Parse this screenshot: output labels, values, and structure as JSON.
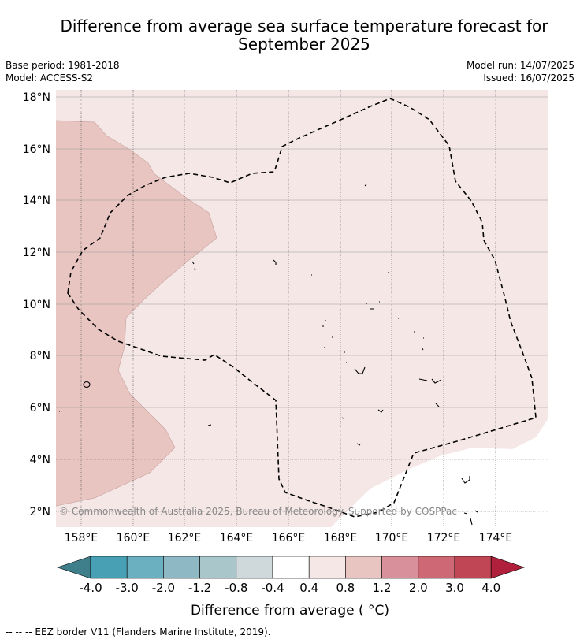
{
  "header": {
    "title_line1": "Difference from average sea surface temperature forecast for",
    "title_line2": "September 2025",
    "base_period": "Base period: 1981-2018",
    "model": "Model: ACCESS-S2",
    "model_run": "Model run: 14/07/2025",
    "issued": "Issued: 16/07/2025"
  },
  "map": {
    "lat_labels": [
      "18°N",
      "16°N",
      "14°N",
      "12°N",
      "10°N",
      "8°N",
      "6°N",
      "4°N",
      "2°N"
    ],
    "lon_labels": [
      "158°E",
      "160°E",
      "162°E",
      "164°E",
      "166°E",
      "168°E",
      "170°E",
      "172°E",
      "174°E"
    ],
    "copyright": "© Commonwealth of Australia 2025, Bureau of Meteorology. Supported by COSPPac"
  },
  "colorbar": {
    "labels": [
      "-4.0",
      "-3.0",
      "-2.0",
      "-1.2",
      "-0.8",
      "-0.4",
      "0.4",
      "0.8",
      "1.2",
      "2.0",
      "3.0",
      "4.0"
    ],
    "colors": [
      "#3f7f8c",
      "#47a0b4",
      "#6ab0c0",
      "#8db8c4",
      "#a9c6ca",
      "#cfd8da",
      "#ffffff",
      "#f5e7e6",
      "#e8c5c1",
      "#d8909a",
      "#cd6874",
      "#c04555",
      "#b0203c"
    ],
    "label": "Difference from average ( °C)"
  },
  "legend": {
    "eez": "--  --  -- EEZ border V11 (Flanders Marine Institute, 2019)."
  }
}
